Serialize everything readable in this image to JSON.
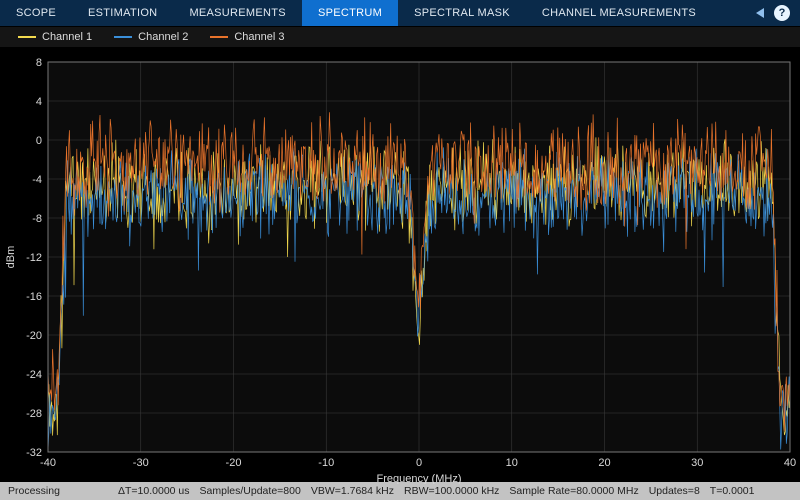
{
  "tabs": [
    {
      "label": "SCOPE",
      "active": false
    },
    {
      "label": "ESTIMATION",
      "active": false
    },
    {
      "label": "MEASUREMENTS",
      "active": false
    },
    {
      "label": "SPECTRUM",
      "active": true
    },
    {
      "label": "SPECTRAL MASK",
      "active": false
    },
    {
      "label": "CHANNEL MEASUREMENTS",
      "active": false
    }
  ],
  "help_icon_text": "?",
  "legend": [
    {
      "label": "Channel 1",
      "color": "#f2d94e"
    },
    {
      "label": "Channel 2",
      "color": "#3a8fd9"
    },
    {
      "label": "Channel 3",
      "color": "#e8732b"
    }
  ],
  "plot": {
    "type": "line",
    "plot_bg": "#0c0c0c",
    "figure_bg": "#000000",
    "grid_color": "#3a3a3a",
    "axis_color": "#777777",
    "text_color": "#d8d8d8",
    "xlabel": "Frequency (MHz)",
    "ylabel": "dBm",
    "xlim": [
      -40,
      40
    ],
    "ylim": [
      -32,
      8
    ],
    "xtick_step": 10,
    "ytick_step": 4,
    "xticks": [
      -40,
      -30,
      -20,
      -10,
      0,
      10,
      20,
      30,
      40
    ],
    "yticks": [
      -32,
      -28,
      -24,
      -20,
      -16,
      -12,
      -8,
      -4,
      0,
      4,
      8
    ],
    "series_line_width": 0.7,
    "series": [
      {
        "name": "Channel 1",
        "color": "#f2d94e",
        "baseline_db": -4.5,
        "noise_amp_db": 5.0,
        "center_notch_db": -20,
        "edge_floor_db": -27,
        "seed": 11
      },
      {
        "name": "Channel 2",
        "color": "#3a8fd9",
        "baseline_db": -5.5,
        "noise_amp_db": 5.0,
        "center_notch_db": -18,
        "edge_floor_db": -28,
        "seed": 23
      },
      {
        "name": "Channel 3",
        "color": "#e8732b",
        "baseline_db": -2.5,
        "noise_amp_db": 5.5,
        "center_notch_db": -17,
        "edge_floor_db": -26,
        "seed": 37
      }
    ],
    "n_points": 800
  },
  "status": {
    "mode": "Processing",
    "fields": {
      "deltaT": "ΔT=10.0000 us",
      "samples_per_update": "Samples/Update=800",
      "vbw": "VBW=1.7684 kHz",
      "rbw": "RBW=100.0000 kHz",
      "sample_rate": "Sample Rate=80.0000 MHz",
      "updates": "Updates=8",
      "t": "T=0.0001"
    }
  }
}
